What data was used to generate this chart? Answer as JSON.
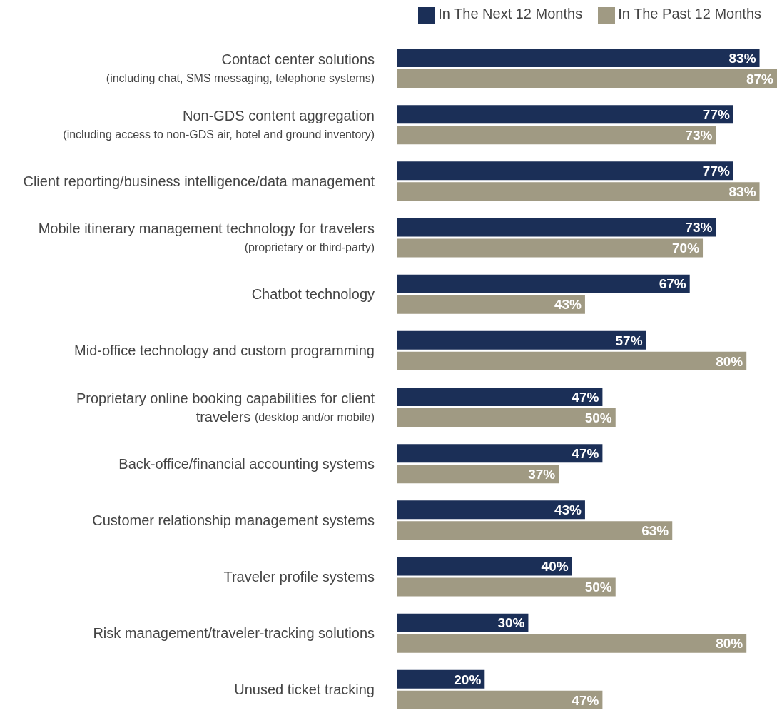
{
  "chart_data": {
    "type": "bar",
    "orientation": "horizontal",
    "categories": [
      "Contact center solutions\n(including chat, SMS messaging, telephone systems)",
      "Non-GDS content aggregation\n(including access to non-GDS air, hotel and ground inventory)",
      "Client reporting/business intelligence/data management",
      "Mobile itinerary management technology for travelers\n(proprietary or third-party)",
      "Chatbot technology",
      "Mid-office technology and custom programming",
      "Proprietary online booking capabilities for client\ntravelers (desktop and/or mobile)",
      "Back-office/financial accounting systems",
      "Customer relationship management systems",
      "Traveler profile systems",
      "Risk management/traveler-tracking solutions",
      "Unused ticket tracking"
    ],
    "series": [
      {
        "name": "In The Next 12 Months",
        "color": "#1b2f57",
        "values": [
          83,
          77,
          77,
          73,
          67,
          57,
          47,
          47,
          43,
          40,
          30,
          20
        ],
        "value_labels": [
          "83%",
          "77%",
          "77%",
          "73%",
          "67%",
          "57%",
          "47%",
          "47%",
          "43%",
          "40%",
          "30%",
          "20%"
        ]
      },
      {
        "name": "In The Past 12 Months",
        "color": "#a09a83",
        "values": [
          87,
          73,
          83,
          70,
          43,
          80,
          50,
          37,
          63,
          50,
          80,
          47
        ],
        "value_labels": [
          "87%",
          "73%",
          "83%",
          "70%",
          "43%",
          "80%",
          "50%",
          "37%",
          "63%",
          "50%",
          "80%",
          "47%"
        ]
      }
    ],
    "legend": "top right"
  }
}
